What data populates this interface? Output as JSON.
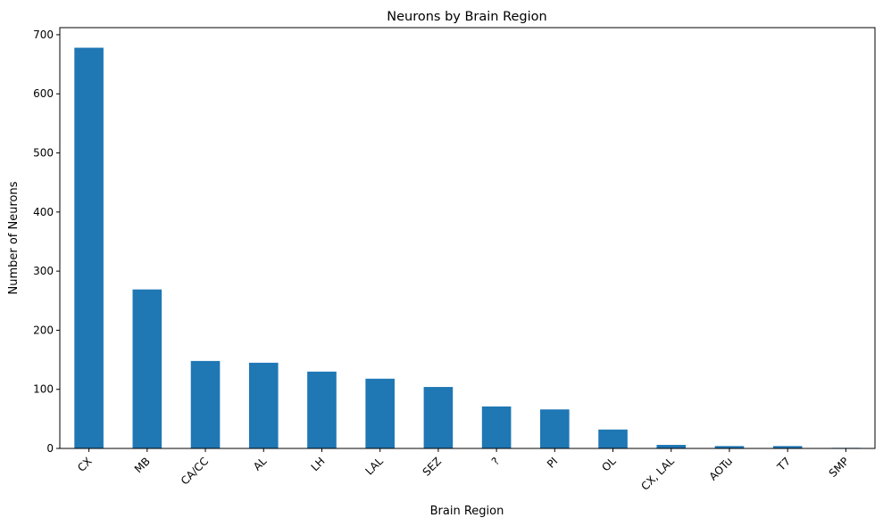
{
  "chart_data": {
    "type": "bar",
    "title": "Neurons by Brain Region",
    "xlabel": "Brain Region",
    "ylabel": "Number of Neurons",
    "categories": [
      "CX",
      "MB",
      "CA/CC",
      "AL",
      "LH",
      "LAL",
      "SEZ",
      "?",
      "PI",
      "OL",
      "CX, LAL",
      "AOTu",
      "T7",
      "SMP"
    ],
    "values": [
      678,
      269,
      148,
      145,
      130,
      118,
      104,
      71,
      66,
      32,
      6,
      4,
      4,
      1
    ],
    "ylim": [
      0,
      712
    ],
    "yticks": [
      0,
      100,
      200,
      300,
      400,
      500,
      600,
      700
    ],
    "bar_color": "#1f77b4",
    "grid": false,
    "legend": "none"
  }
}
